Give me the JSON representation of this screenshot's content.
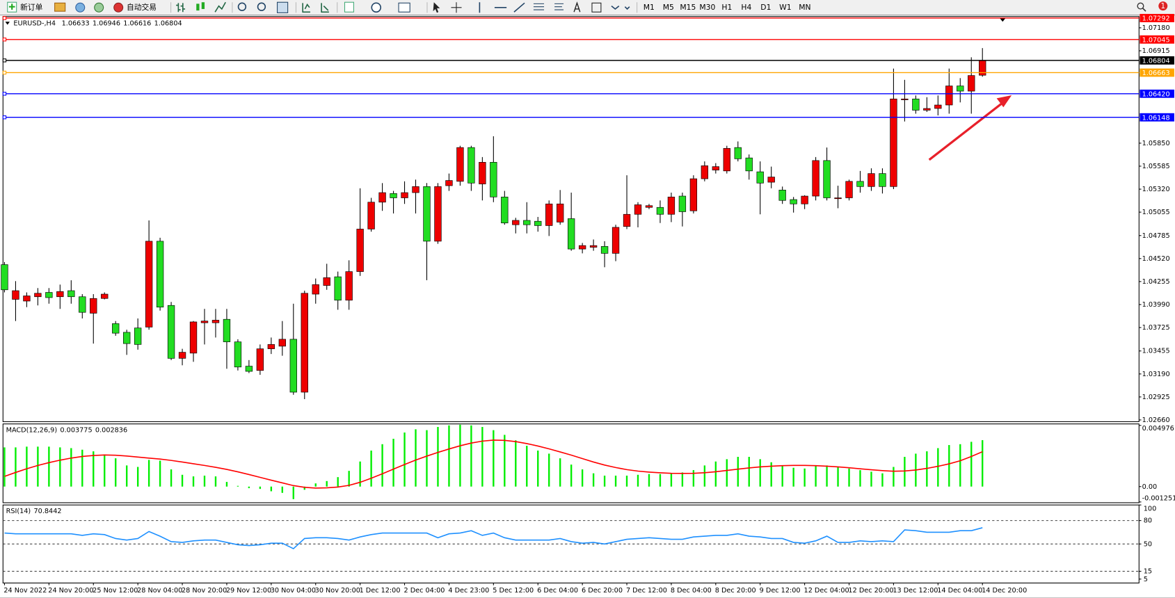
{
  "toolbar": {
    "new_order": "新订单",
    "auto_trading": "自动交易",
    "timeframes": [
      "M1",
      "M5",
      "M15",
      "M30",
      "H1",
      "H4",
      "D1",
      "W1",
      "MN"
    ],
    "notifications": "1"
  },
  "chart_data": [
    {
      "type": "candlestick",
      "symbol": "EURUSD-,H4",
      "up_color": "#ee0000",
      "down_color": "#22dd22",
      "candles": [
        [
          1.0445,
          1.0448,
          1.0413,
          1.0416
        ],
        [
          1.0405,
          1.0426,
          1.038,
          1.0415
        ],
        [
          1.0403,
          1.0413,
          1.0396,
          1.0409
        ],
        [
          1.0408,
          1.0418,
          1.0398,
          1.0412
        ],
        [
          1.0413,
          1.0418,
          1.04,
          1.0407
        ],
        [
          1.0408,
          1.0422,
          1.0394,
          1.0414
        ],
        [
          1.0415,
          1.0427,
          1.04,
          1.0408
        ],
        [
          1.0408,
          1.0411,
          1.0383,
          1.039
        ],
        [
          1.0389,
          1.0411,
          1.0354,
          1.0406
        ],
        [
          1.0406,
          1.0413,
          1.0405,
          1.0411
        ],
        [
          1.0377,
          1.038,
          1.0363,
          1.0366
        ],
        [
          1.0367,
          1.037,
          1.0341,
          1.0354
        ],
        [
          1.0372,
          1.0383,
          1.0347,
          1.0353
        ],
        [
          1.0373,
          1.0496,
          1.037,
          1.0472
        ],
        [
          1.0472,
          1.0476,
          1.0392,
          1.0396
        ],
        [
          1.0398,
          1.0402,
          1.0335,
          1.0337
        ],
        [
          1.0337,
          1.0348,
          1.0329,
          1.0344
        ],
        [
          1.0343,
          1.038,
          1.0333,
          1.0379
        ],
        [
          1.0378,
          1.0394,
          1.0353,
          1.038
        ],
        [
          1.0378,
          1.0394,
          1.0361,
          1.0381
        ],
        [
          1.0382,
          1.0394,
          1.0325,
          1.0356
        ],
        [
          1.0356,
          1.0359,
          1.0323,
          1.0327
        ],
        [
          1.0328,
          1.0335,
          1.032,
          1.0322
        ],
        [
          1.0323,
          1.0353,
          1.0318,
          1.0348
        ],
        [
          1.0348,
          1.0361,
          1.0342,
          1.0353
        ],
        [
          1.0351,
          1.038,
          1.034,
          1.0359
        ],
        [
          1.0359,
          1.04,
          1.0295,
          1.0298
        ],
        [
          1.0298,
          1.0415,
          1.029,
          1.0412
        ],
        [
          1.0411,
          1.0429,
          1.04,
          1.0422
        ],
        [
          1.0421,
          1.0446,
          1.0416,
          1.043
        ],
        [
          1.0431,
          1.0437,
          1.0393,
          1.0404
        ],
        [
          1.0404,
          1.045,
          1.0393,
          1.0437
        ],
        [
          1.0437,
          1.0533,
          1.0432,
          1.0486
        ],
        [
          1.0486,
          1.0522,
          1.0483,
          1.0517
        ],
        [
          1.0517,
          1.0539,
          1.0507,
          1.0528
        ],
        [
          1.0527,
          1.053,
          1.0504,
          1.0522
        ],
        [
          1.0522,
          1.0541,
          1.0515,
          1.0528
        ],
        [
          1.0528,
          1.0543,
          1.0504,
          1.0535
        ],
        [
          1.0535,
          1.0539,
          1.0427,
          1.0472
        ],
        [
          1.0472,
          1.0539,
          1.0469,
          1.0535
        ],
        [
          1.0536,
          1.055,
          1.053,
          1.0542
        ],
        [
          1.0541,
          1.0582,
          1.0536,
          1.058
        ],
        [
          1.058,
          1.0582,
          1.053,
          1.0539
        ],
        [
          1.0538,
          1.0569,
          1.0519,
          1.0563
        ],
        [
          1.0563,
          1.0593,
          1.0517,
          1.0523
        ],
        [
          1.0523,
          1.053,
          1.0491,
          1.0493
        ],
        [
          1.0491,
          1.0499,
          1.0481,
          1.0496
        ],
        [
          1.0496,
          1.0517,
          1.0481,
          1.0491
        ],
        [
          1.0495,
          1.05,
          1.0483,
          1.049
        ],
        [
          1.049,
          1.0519,
          1.0478,
          1.0515
        ],
        [
          1.0494,
          1.0531,
          1.0491,
          1.0515
        ],
        [
          1.0498,
          1.0528,
          1.0461,
          1.0463
        ],
        [
          1.0463,
          1.047,
          1.0458,
          1.0467
        ],
        [
          1.0465,
          1.0474,
          1.0461,
          1.0467
        ],
        [
          1.0466,
          1.0472,
          1.0442,
          1.0458
        ],
        [
          1.0458,
          1.0491,
          1.0449,
          1.0488
        ],
        [
          1.0489,
          1.0548,
          1.0486,
          1.0503
        ],
        [
          1.0503,
          1.0517,
          1.0488,
          1.0514
        ],
        [
          1.0511,
          1.0515,
          1.0509,
          1.0513
        ],
        [
          1.0511,
          1.0519,
          1.0493,
          1.0503
        ],
        [
          1.0503,
          1.0528,
          1.0494,
          1.0523
        ],
        [
          1.0524,
          1.0528,
          1.0489,
          1.0506
        ],
        [
          1.0507,
          1.0548,
          1.0504,
          1.0544
        ],
        [
          1.0544,
          1.0564,
          1.0541,
          1.0559
        ],
        [
          1.0554,
          1.0562,
          1.055,
          1.0558
        ],
        [
          1.0553,
          1.0582,
          1.055,
          1.0579
        ],
        [
          1.058,
          1.0587,
          1.0564,
          1.0567
        ],
        [
          1.0568,
          1.0572,
          1.0543,
          1.0553
        ],
        [
          1.0552,
          1.0564,
          1.0503,
          1.0539
        ],
        [
          1.054,
          1.0558,
          1.0533,
          1.0546
        ],
        [
          1.0531,
          1.0535,
          1.0515,
          1.0519
        ],
        [
          1.052,
          1.0523,
          1.0505,
          1.0515
        ],
        [
          1.0515,
          1.0525,
          1.0509,
          1.0524
        ],
        [
          1.0524,
          1.0569,
          1.0519,
          1.0565
        ],
        [
          1.0565,
          1.058,
          1.0519,
          1.0522
        ],
        [
          1.0521,
          1.0536,
          1.051,
          1.0522
        ],
        [
          1.0522,
          1.0543,
          1.0519,
          1.0541
        ],
        [
          1.0541,
          1.0553,
          1.0528,
          1.0535
        ],
        [
          1.0535,
          1.0556,
          1.053,
          1.055
        ],
        [
          1.055,
          1.0556,
          1.0527,
          1.0535
        ],
        [
          1.0535,
          1.0671,
          1.0532,
          1.0636
        ],
        [
          1.0635,
          1.0658,
          1.061,
          1.0636
        ],
        [
          1.0636,
          1.064,
          1.0619,
          1.0623
        ],
        [
          1.0623,
          1.0638,
          1.0621,
          1.0625
        ],
        [
          1.0625,
          1.064,
          1.0617,
          1.0629
        ],
        [
          1.0629,
          1.0671,
          1.0619,
          1.0651
        ],
        [
          1.0651,
          1.066,
          1.0632,
          1.0645
        ],
        [
          1.0645,
          1.0684,
          1.0619,
          1.0663
        ],
        [
          1.06633,
          1.06946,
          1.06616,
          1.06804
        ]
      ],
      "ylim": [
        1.0264,
        1.0731
      ],
      "yticks": [
        {
          "value": 1.0718,
          "label": "1.07180"
        },
        1.06915,
        {
          "value": 1.0585,
          "label": "1.05850"
        },
        1.05585,
        {
          "value": 1.0532,
          "label": "1.05320"
        },
        1.05055,
        1.04785,
        {
          "value": 1.0452,
          "label": "1.04520"
        },
        1.04255,
        {
          "value": 1.0399,
          "label": "1.03990"
        },
        1.03725,
        1.03455,
        {
          "value": 1.0319,
          "label": "1.03190"
        },
        1.02925,
        {
          "value": 1.0266,
          "label": "1.02660"
        }
      ],
      "levels": [
        {
          "value": 1.07292,
          "color": "#ff0000"
        },
        {
          "value": 1.07045,
          "color": "#ff0000"
        },
        {
          "value": 1.06804,
          "color": "#000000"
        },
        {
          "value": 1.06663,
          "color": "#ffa500"
        },
        {
          "value": 1.0642,
          "label": "1.06420",
          "color": "#0000ff"
        },
        {
          "value": 1.06148,
          "color": "#0000ff"
        }
      ],
      "time_labels": [
        "24 Nov 2022",
        "24 Nov 20:00",
        "25 Nov 12:00",
        "28 Nov 04:00",
        "28 Nov 20:00",
        "29 Nov 12:00",
        "30 Nov 04:00",
        "30 Nov 20:00",
        "1 Dec 12:00",
        "2 Dec 04:00",
        "4 Dec 23:00",
        "5 Dec 12:00",
        "6 Dec 04:00",
        "6 Dec 20:00",
        "7 Dec 12:00",
        "8 Dec 04:00",
        "8 Dec 20:00",
        "9 Dec 12:00",
        "12 Dec 04:00",
        "12 Dec 20:00",
        "13 Dec 12:00",
        "14 Dec 04:00",
        "14 Dec 20:00"
      ]
    },
    {
      "type": "macd",
      "title": "MACD(12,26,9)",
      "color": "#00ee00",
      "signal_color": "#ff0000",
      "values": [
        0.00319,
        0.00319,
        0.00325,
        0.00325,
        0.00325,
        0.00319,
        0.00313,
        0.003,
        0.00287,
        0.00262,
        0.0023,
        0.00172,
        0.0016,
        0.00217,
        0.00211,
        0.0014,
        0.00096,
        0.00083,
        0.00089,
        0.00083,
        0.00038,
        6e-05,
        -0.00013,
        -0.00019,
        -0.00038,
        -0.00051,
        -0.00102,
        -0.00026,
        0.00026,
        0.00045,
        0.00077,
        0.00128,
        0.00204,
        0.00293,
        0.00345,
        0.00389,
        0.0044,
        0.00466,
        0.00459,
        0.00485,
        0.00498,
        0.00504,
        0.00498,
        0.00485,
        0.00459,
        0.00421,
        0.00376,
        0.00332,
        0.00293,
        0.00268,
        0.0023,
        0.00179,
        0.0014,
        0.00108,
        0.00089,
        0.00089,
        0.00089,
        0.00096,
        0.00102,
        0.00102,
        0.00108,
        0.00115,
        0.00134,
        0.00172,
        0.00204,
        0.00223,
        0.00242,
        0.00242,
        0.00223,
        0.00198,
        0.00172,
        0.00153,
        0.00147,
        0.00166,
        0.00172,
        0.0016,
        0.00147,
        0.00134,
        0.00121,
        0.00108,
        0.0016,
        0.00242,
        0.00268,
        0.00287,
        0.00313,
        0.00338,
        0.00345,
        0.00364,
        0.003775
      ],
      "signal": [
        0.00083,
        0.00115,
        0.00145,
        0.00172,
        0.00195,
        0.00215,
        0.00232,
        0.00245,
        0.00253,
        0.00257,
        0.00255,
        0.00249,
        0.0024,
        0.00232,
        0.00224,
        0.00213,
        0.002,
        0.00186,
        0.00172,
        0.00157,
        0.0014,
        0.0012,
        0.00098,
        0.00075,
        0.00052,
        0.0003,
        8e-05,
        -6e-05,
        -0.00012,
        -0.0001,
        -4e-05,
        0.0001,
        0.00035,
        0.00068,
        0.00104,
        0.00142,
        0.0018,
        0.00216,
        0.00248,
        0.00278,
        0.00306,
        0.00332,
        0.00354,
        0.0037,
        0.00378,
        0.00376,
        0.00366,
        0.0035,
        0.0033,
        0.00307,
        0.00282,
        0.00256,
        0.00228,
        0.002,
        0.00175,
        0.00155,
        0.00138,
        0.00126,
        0.00118,
        0.00112,
        0.00108,
        0.00107,
        0.00108,
        0.00113,
        0.00121,
        0.00131,
        0.00142,
        0.00152,
        0.0016,
        0.00166,
        0.0017,
        0.00172,
        0.00172,
        0.0017,
        0.00166,
        0.0016,
        0.00153,
        0.00145,
        0.00137,
        0.0013,
        0.00125,
        0.00127,
        0.00135,
        0.00148,
        0.00165,
        0.00185,
        0.0021,
        0.00245,
        0.002836
      ],
      "ylim": [
        -0.001251,
        0.004976
      ],
      "yticks": [
        0.004976,
        {
          "value": 0,
          "label": "0.00"
        },
        -0.001251
      ]
    },
    {
      "type": "line",
      "title": "RSI(14)",
      "color": "#1e90ff",
      "values": [
        64,
        63,
        63,
        63,
        63,
        63,
        63,
        61,
        63,
        62,
        57,
        55,
        57,
        66,
        60,
        53,
        52,
        54,
        55,
        55,
        52,
        49,
        48,
        49,
        51,
        51,
        44,
        57,
        58,
        58,
        57,
        55,
        59,
        62,
        64,
        64,
        64,
        64,
        64,
        58,
        63,
        64,
        67,
        61,
        64,
        58,
        55,
        55,
        55,
        55,
        57,
        53,
        51,
        52,
        50,
        53,
        56,
        57,
        58,
        57,
        56,
        56,
        59,
        60,
        61,
        61,
        63,
        60,
        59,
        57,
        57,
        52,
        51,
        54,
        60,
        52,
        52,
        54,
        53,
        54,
        53,
        68,
        67,
        65,
        65,
        65,
        67,
        67,
        70.8442
      ],
      "ylim": [
        0,
        100
      ],
      "yticks": [
        100,
        80,
        50,
        15,
        5
      ],
      "levels": [
        80,
        50,
        15
      ]
    }
  ]
}
